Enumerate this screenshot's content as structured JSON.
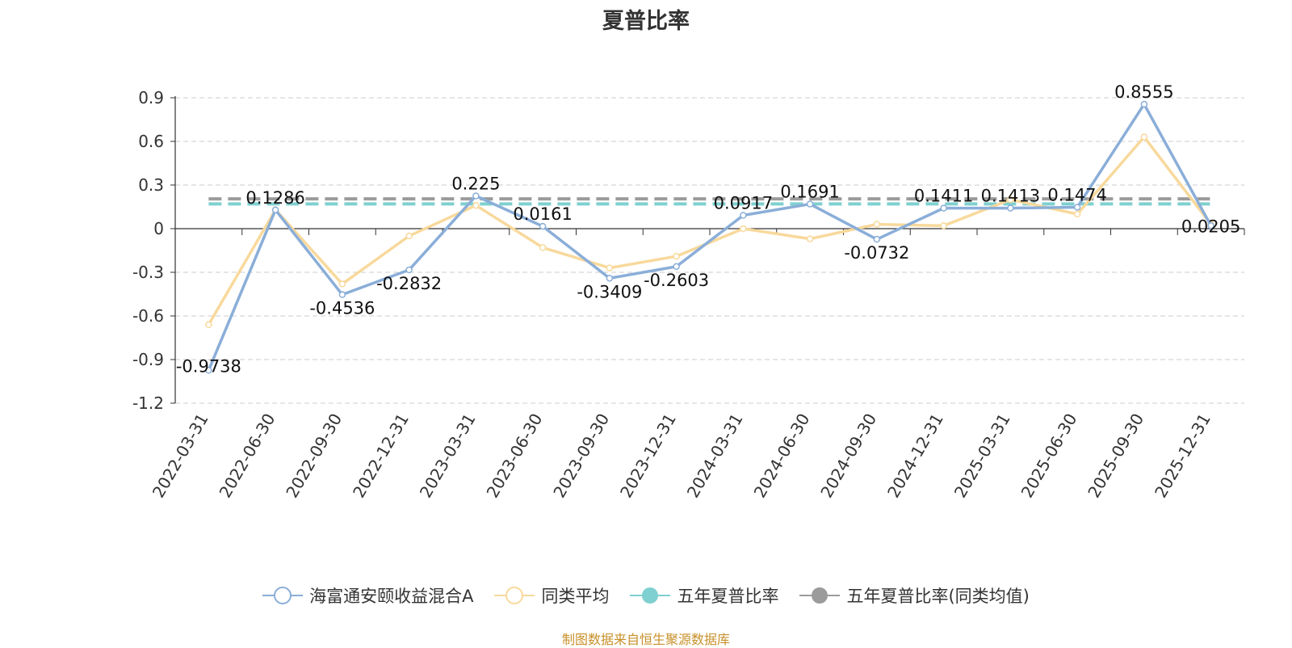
{
  "title": "夏普比率",
  "footer": "制图数据来自恒生聚源数据库",
  "chart_data": {
    "type": "line",
    "title": "夏普比率",
    "categories": [
      "2022-03-31",
      "2022-06-30",
      "2022-09-30",
      "2022-12-31",
      "2023-03-31",
      "2023-06-30",
      "2023-09-30",
      "2023-12-31",
      "2024-03-31",
      "2024-06-30",
      "2024-09-30",
      "2024-12-31",
      "2025-03-31",
      "2025-06-30",
      "2025-09-30",
      "2025-12-31"
    ],
    "ylim": [
      -1.2,
      0.9
    ],
    "yticks": [
      "0.9",
      "0.6",
      "0.3",
      "0",
      "-0.3",
      "-0.6",
      "-0.9",
      "-1.2"
    ],
    "grid": true,
    "legend_position": "bottom",
    "series": [
      {
        "name": "海富通安颐收益混合A",
        "color": "#8aaed8",
        "values": [
          -0.9738,
          0.1286,
          -0.4536,
          -0.2832,
          0.225,
          0.0161,
          -0.3409,
          -0.2603,
          0.0917,
          0.1691,
          -0.0732,
          0.1411,
          0.1413,
          0.1474,
          0.8555,
          0.0205
        ],
        "labels": [
          "-0.9738",
          "0.1286",
          "-0.4536",
          "-0.2832",
          "0.225",
          "0.0161",
          "-0.3409",
          "-0.2603",
          "0.0917",
          "0.1691",
          "-0.0732",
          "0.1411",
          "0.1413",
          "0.1474",
          "0.8555",
          "0.0205"
        ]
      },
      {
        "name": "同类平均",
        "color": "#f8d99c",
        "values": [
          -0.66,
          0.13,
          -0.38,
          -0.05,
          0.16,
          -0.13,
          -0.27,
          -0.19,
          0.0,
          -0.07,
          0.03,
          0.02,
          0.2,
          0.1,
          0.63,
          0.03
        ]
      },
      {
        "name": "五年夏普比率",
        "color": "#7fd0d0",
        "type": "reference",
        "value": 0.17
      },
      {
        "name": "五年夏普比率(同类均值)",
        "color": "#9b9b9b",
        "type": "reference",
        "value": 0.205
      }
    ]
  }
}
